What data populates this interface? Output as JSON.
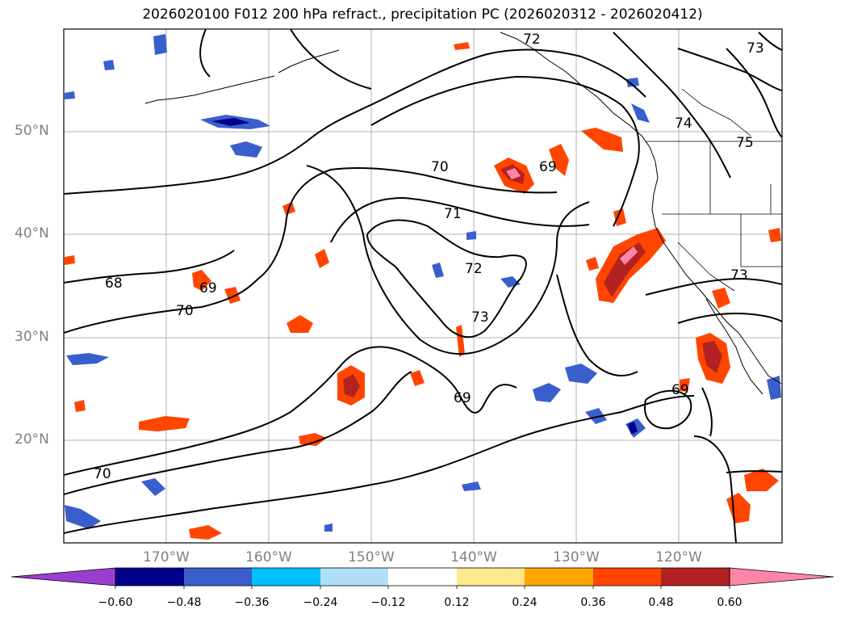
{
  "title": "2026020100 F012 200 hPa refract., precipitation PC (2026020312 - 2026020412)",
  "lat_labels": [
    "50°N",
    "40°N",
    "30°N",
    "20°N"
  ],
  "lon_labels": [
    "170°W",
    "160°W",
    "150°W",
    "140°W",
    "130°W",
    "120°W"
  ],
  "contour_labels": [
    "72",
    "73",
    "74",
    "75",
    "70",
    "69",
    "71",
    "72",
    "73",
    "68",
    "69",
    "70",
    "73",
    "69",
    "69",
    "70"
  ],
  "colorbar": {
    "ticks": [
      "−0.60",
      "−0.48",
      "−0.36",
      "−0.24",
      "−0.12",
      "0.12",
      "0.24",
      "0.36",
      "0.48",
      "0.60"
    ],
    "colors": [
      "#9a3ecf",
      "#00008b",
      "#3a5fcd",
      "#00bfff",
      "#b0e0f8",
      "#ffffff",
      "#fde88c",
      "#ffa500",
      "#ff4500",
      "#b22222",
      "#ff85a8"
    ]
  }
}
